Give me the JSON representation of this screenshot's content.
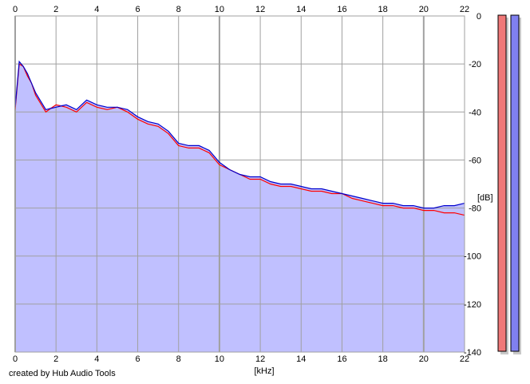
{
  "chart_data": {
    "type": "area",
    "title": "",
    "xlabel": "[kHz]",
    "ylabel": "[dB]",
    "xlim": [
      0,
      22
    ],
    "ylim": [
      -140,
      0
    ],
    "x_ticks": [
      "0",
      "2",
      "4",
      "6",
      "8",
      "10",
      "12",
      "14",
      "16",
      "18",
      "20",
      "22"
    ],
    "y_ticks": [
      "0",
      "-20",
      "-40",
      "-60",
      "-80",
      "-100",
      "-120",
      "-140"
    ],
    "grid": true,
    "legend": "none",
    "fill_color": "#c0c0ff",
    "series": [
      {
        "color": "#ff0000",
        "x": [
          0,
          0.2,
          0.4,
          0.6,
          0.8,
          1,
          1.5,
          2,
          2.5,
          3,
          3.5,
          4,
          4.5,
          5,
          5.5,
          6,
          6.5,
          7,
          7.5,
          8,
          8.5,
          9,
          9.5,
          10,
          10.5,
          11,
          11.5,
          12,
          12.5,
          13,
          13.5,
          14,
          14.5,
          15,
          15.5,
          16,
          16.5,
          17,
          17.5,
          18,
          18.5,
          19,
          19.5,
          20,
          20.5,
          21,
          21.5,
          22
        ],
        "y": [
          -39,
          -20,
          -21,
          -25,
          -28,
          -33,
          -40,
          -37,
          -38,
          -40,
          -36,
          -38,
          -39,
          -38,
          -40,
          -43,
          -45,
          -46,
          -49,
          -54,
          -55,
          -55,
          -57,
          -62,
          -64,
          -66,
          -68,
          -68,
          -70,
          -71,
          -71,
          -72,
          -73,
          -73,
          -74,
          -74,
          -76,
          -77,
          -78,
          -79,
          -79,
          -80,
          -80,
          -81,
          -81,
          -82,
          -82,
          -83
        ]
      },
      {
        "color": "#0000cc",
        "x": [
          0,
          0.2,
          0.4,
          0.6,
          0.8,
          1,
          1.5,
          2,
          2.5,
          3,
          3.5,
          4,
          4.5,
          5,
          5.5,
          6,
          6.5,
          7,
          7.5,
          8,
          8.5,
          9,
          9.5,
          10,
          10.5,
          11,
          11.5,
          12,
          12.5,
          13,
          13.5,
          14,
          14.5,
          15,
          15.5,
          16,
          16.5,
          17,
          17.5,
          18,
          18.5,
          19,
          19.5,
          20,
          20.5,
          21,
          21.5,
          22
        ],
        "y": [
          -38,
          -19,
          -21,
          -24,
          -28,
          -32,
          -39,
          -38,
          -37,
          -39,
          -35,
          -37,
          -38,
          -38,
          -39,
          -42,
          -44,
          -45,
          -48,
          -53,
          -54,
          -54,
          -56,
          -61,
          -64,
          -66,
          -67,
          -67,
          -69,
          -70,
          -70,
          -71,
          -72,
          -72,
          -73,
          -74,
          -75,
          -76,
          -77,
          -78,
          -78,
          -79,
          -79,
          -80,
          -80,
          -79,
          -79,
          -78
        ]
      }
    ]
  },
  "meters": {
    "left_color": "#f07878",
    "right_color": "#8080f0"
  },
  "footer": {
    "credit": "created by Hub Audio Tools"
  }
}
